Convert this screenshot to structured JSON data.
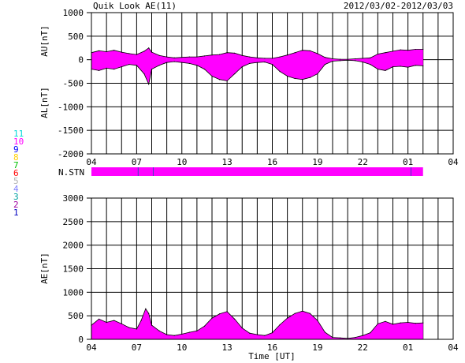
{
  "header": {
    "title": "Quik Look AE(11)",
    "date_range": "2012/03/02-2012/03/03"
  },
  "legend": {
    "station_counts": [
      {
        "label": "11",
        "color": "#00d8d8"
      },
      {
        "label": "10",
        "color": "#ff00ff"
      },
      {
        "label": "9",
        "color": "#0000ff"
      },
      {
        "label": "8",
        "color": "#ffd000"
      },
      {
        "label": "7",
        "color": "#00c000"
      },
      {
        "label": "6",
        "color": "#ff0000"
      },
      {
        "label": "5",
        "color": "#b0b0b0"
      },
      {
        "label": "4",
        "color": "#8080ff"
      },
      {
        "label": "3",
        "color": "#00a0a0"
      },
      {
        "label": "2",
        "color": "#a000a0"
      },
      {
        "label": "1",
        "color": "#0000c0"
      }
    ]
  },
  "colors": {
    "fill": "#ff00ff",
    "axis": "#000000",
    "grid": "#000000",
    "station_bar": "#ff00ff",
    "station_marker": "#4040c0"
  },
  "chart_data": [
    {
      "type": "area",
      "id": "au_al",
      "ylabel_top": "AU[nT]",
      "ylabel_bottom": "AL[nT]",
      "ylim": [
        -2000,
        1000
      ],
      "yticks": [
        1000,
        500,
        0,
        -500,
        -1000,
        -1500,
        -2000
      ],
      "xlim": [
        4,
        28
      ],
      "xtick_labels": [
        "04",
        "07",
        "10",
        "13",
        "16",
        "19",
        "22",
        "01",
        "04"
      ],
      "grid": true,
      "series": [
        {
          "role": "AU",
          "x": [
            4.0,
            4.5,
            5.0,
            5.5,
            6.0,
            6.5,
            7.0,
            7.5,
            7.8,
            8.0,
            8.5,
            9.0,
            9.5,
            10.0,
            10.5,
            11.0,
            11.5,
            12.0,
            12.5,
            13.0,
            13.5,
            14.0,
            14.5,
            15.0,
            15.5,
            16.0,
            16.5,
            17.0,
            17.5,
            18.0,
            18.5,
            19.0,
            19.5,
            20.0,
            20.5,
            21.0,
            21.5,
            22.0,
            22.5,
            23.0,
            23.5,
            24.0,
            24.5,
            25.0,
            25.5,
            26.0
          ],
          "y": [
            150,
            190,
            170,
            200,
            160,
            130,
            110,
            180,
            250,
            160,
            90,
            60,
            40,
            50,
            60,
            60,
            80,
            100,
            110,
            150,
            140,
            90,
            60,
            40,
            30,
            30,
            60,
            100,
            150,
            200,
            190,
            130,
            50,
            20,
            10,
            10,
            20,
            30,
            40,
            120,
            150,
            180,
            210,
            200,
            220,
            220
          ]
        },
        {
          "role": "AL",
          "x": [
            4.0,
            4.5,
            5.0,
            5.5,
            6.0,
            6.5,
            7.0,
            7.5,
            7.8,
            8.0,
            8.5,
            9.0,
            9.5,
            10.0,
            10.5,
            11.0,
            11.5,
            12.0,
            12.5,
            13.0,
            13.5,
            14.0,
            14.5,
            15.0,
            15.5,
            16.0,
            16.5,
            17.0,
            17.5,
            18.0,
            18.5,
            19.0,
            19.5,
            20.0,
            20.5,
            21.0,
            21.5,
            22.0,
            22.5,
            23.0,
            23.5,
            24.0,
            24.5,
            25.0,
            25.5,
            26.0
          ],
          "y": [
            -200,
            -230,
            -180,
            -200,
            -150,
            -100,
            -120,
            -300,
            -520,
            -200,
            -120,
            -60,
            -40,
            -60,
            -80,
            -120,
            -200,
            -350,
            -420,
            -450,
            -300,
            -150,
            -80,
            -60,
            -50,
            -100,
            -250,
            -350,
            -400,
            -420,
            -380,
            -300,
            -100,
            -30,
            -20,
            -10,
            -20,
            -50,
            -100,
            -200,
            -230,
            -150,
            -140,
            -160,
            -120,
            -130
          ]
        }
      ]
    },
    {
      "type": "area",
      "id": "ae",
      "ylabel": "AE[nT]",
      "xlabel": "Time [UT]",
      "ylim": [
        0,
        3000
      ],
      "yticks": [
        3000,
        2500,
        2000,
        1500,
        1000,
        500,
        0
      ],
      "xlim": [
        4,
        28
      ],
      "xtick_labels": [
        "04",
        "07",
        "10",
        "13",
        "16",
        "19",
        "22",
        "01",
        "04"
      ],
      "grid": true,
      "series": [
        {
          "role": "AE",
          "x": [
            4.0,
            4.5,
            5.0,
            5.5,
            6.0,
            6.5,
            7.0,
            7.3,
            7.6,
            7.8,
            8.0,
            8.5,
            9.0,
            9.5,
            10.0,
            10.5,
            11.0,
            11.5,
            12.0,
            12.5,
            13.0,
            13.5,
            14.0,
            14.5,
            15.0,
            15.5,
            16.0,
            16.5,
            17.0,
            17.5,
            18.0,
            18.5,
            19.0,
            19.5,
            20.0,
            20.5,
            21.0,
            21.5,
            22.0,
            22.5,
            23.0,
            23.5,
            24.0,
            24.5,
            25.0,
            25.5,
            26.0
          ],
          "y": [
            300,
            430,
            360,
            400,
            330,
            250,
            220,
            400,
            650,
            550,
            300,
            180,
            100,
            80,
            110,
            150,
            180,
            280,
            450,
            540,
            590,
            430,
            240,
            130,
            100,
            80,
            140,
            310,
            450,
            550,
            600,
            550,
            400,
            150,
            40,
            30,
            20,
            40,
            80,
            140,
            330,
            380,
            320,
            350,
            360,
            340,
            350
          ]
        }
      ]
    }
  ],
  "station_bar": {
    "label": "N.STN",
    "x_start": 4.0,
    "x_end": 26.0,
    "markers_x": [
      7.1,
      8.1,
      25.2
    ]
  }
}
